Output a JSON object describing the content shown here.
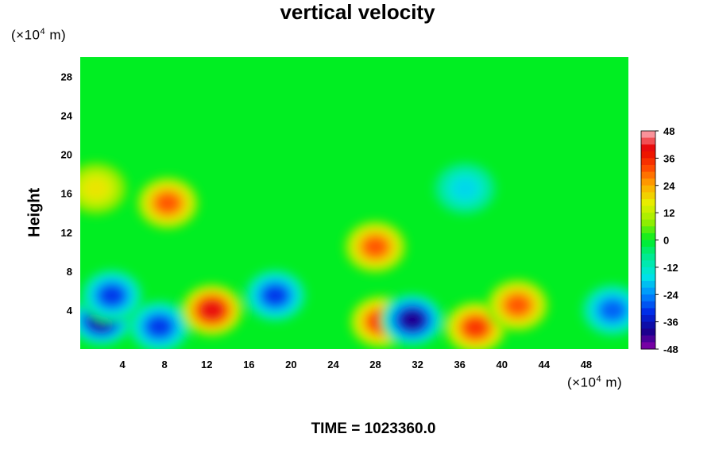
{
  "chart_data": {
    "type": "heatmap",
    "title": "vertical velocity",
    "xlabel": "",
    "ylabel": "Height",
    "x_unit_prefix": "(×10",
    "x_unit_exp": "4",
    "x_unit_suffix": " m)",
    "y_unit_prefix": "(×10",
    "y_unit_exp": "4",
    "y_unit_suffix": " m)",
    "xlim": [
      0,
      52
    ],
    "ylim": [
      0,
      30
    ],
    "x_ticks": [
      4,
      8,
      12,
      16,
      20,
      24,
      28,
      32,
      36,
      40,
      44,
      48
    ],
    "y_ticks": [
      4,
      8,
      12,
      16,
      20,
      24,
      28
    ],
    "colorbar": {
      "range": [
        -48,
        48
      ],
      "ticks": [
        48,
        36,
        24,
        12,
        0,
        -12,
        -24,
        -36,
        -48
      ],
      "levels": 32
    },
    "features": [
      {
        "x": 2.0,
        "y": 3.0,
        "value": -48
      },
      {
        "x": 3.0,
        "y": 5.5,
        "value": -36
      },
      {
        "x": 7.5,
        "y": 2.3,
        "value": -36
      },
      {
        "x": 12.5,
        "y": 4.0,
        "value": 48
      },
      {
        "x": 18.5,
        "y": 5.5,
        "value": -36
      },
      {
        "x": 28.5,
        "y": 2.8,
        "value": 40
      },
      {
        "x": 31.5,
        "y": 3.0,
        "value": -48
      },
      {
        "x": 37.5,
        "y": 2.2,
        "value": 40
      },
      {
        "x": 41.5,
        "y": 4.5,
        "value": 36
      },
      {
        "x": 50.5,
        "y": 4.0,
        "value": -32
      },
      {
        "x": 8.3,
        "y": 15.0,
        "value": 36
      },
      {
        "x": 28.0,
        "y": 10.5,
        "value": 36
      },
      {
        "x": 1.5,
        "y": 16.5,
        "value": 20
      },
      {
        "x": 36.5,
        "y": 16.5,
        "value": -20
      }
    ]
  },
  "time_label": "TIME = 1023360.0"
}
